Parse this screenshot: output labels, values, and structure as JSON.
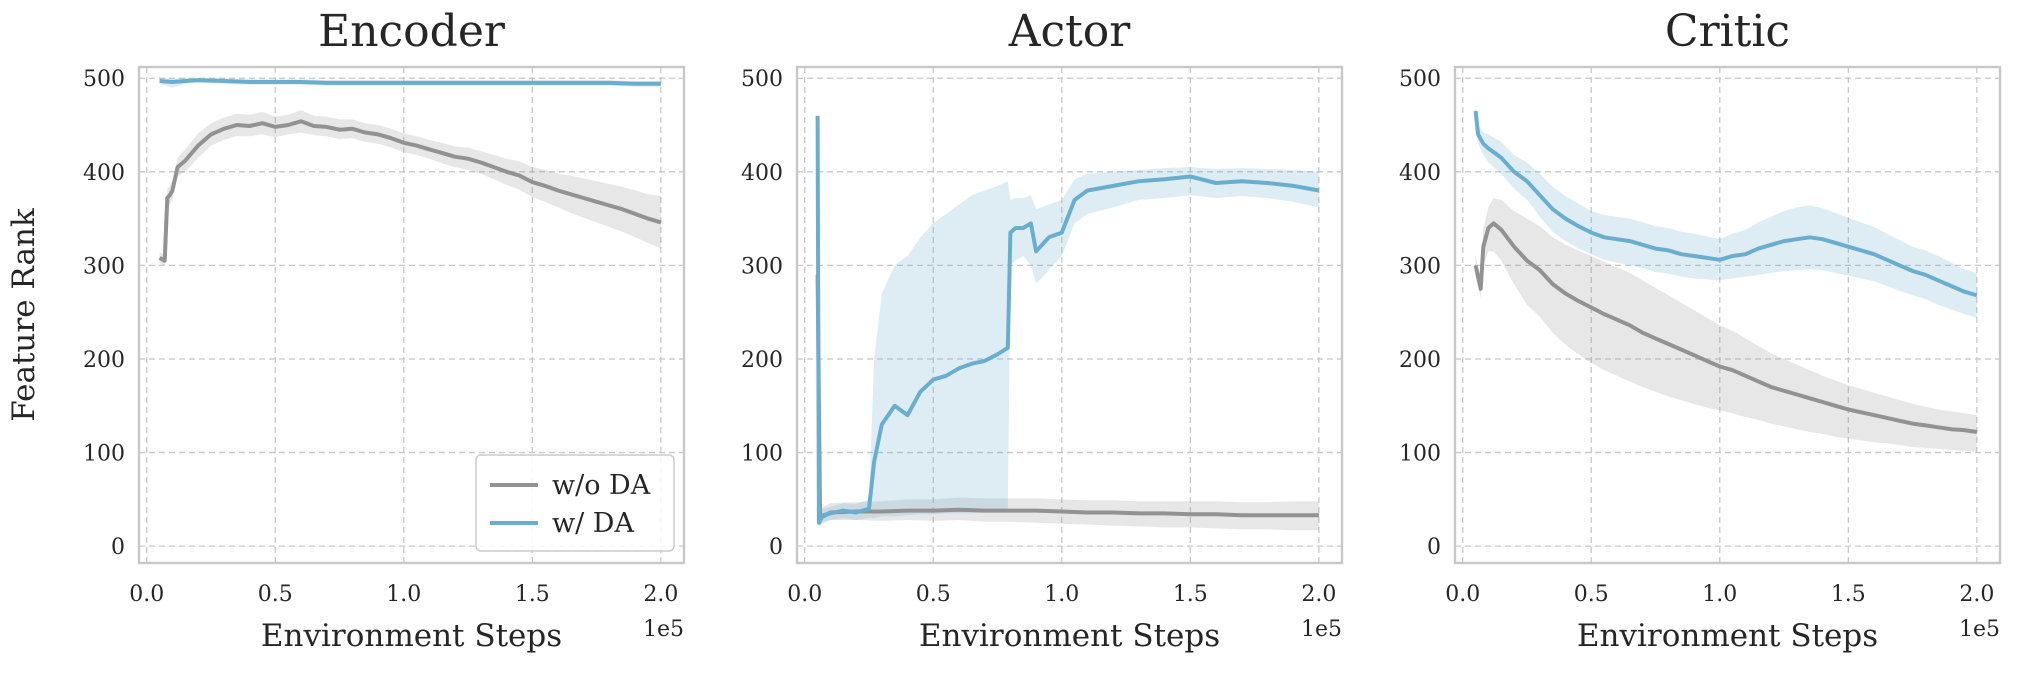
{
  "chart_data": [
    {
      "type": "line",
      "title": "Encoder",
      "xlabel": "Environment Steps",
      "ylabel": "Feature Rank",
      "x_offset_text": "1e5",
      "xlim": [
        -0.03,
        2.09
      ],
      "ylim": [
        -18,
        512
      ],
      "xticks": [
        0.0,
        0.5,
        1.0,
        1.5,
        2.0
      ],
      "xtick_labels": [
        "0.0",
        "0.5",
        "1.0",
        "1.5",
        "2.0"
      ],
      "yticks": [
        0,
        100,
        200,
        300,
        400,
        500
      ],
      "ytick_labels": [
        "0",
        "100",
        "200",
        "300",
        "400",
        "500"
      ],
      "grid": true,
      "legend": {
        "placement": "lower-right",
        "entries": [
          "w/o DA",
          "w/ DA"
        ]
      },
      "series": [
        {
          "name": "w/o DA",
          "color": "#929292",
          "x": [
            0.05,
            0.07,
            0.08,
            0.09,
            0.1,
            0.12,
            0.15,
            0.2,
            0.25,
            0.3,
            0.35,
            0.4,
            0.45,
            0.5,
            0.55,
            0.6,
            0.65,
            0.7,
            0.75,
            0.8,
            0.85,
            0.9,
            0.95,
            1.0,
            1.05,
            1.1,
            1.15,
            1.2,
            1.25,
            1.3,
            1.35,
            1.4,
            1.45,
            1.5,
            1.55,
            1.6,
            1.65,
            1.7,
            1.75,
            1.8,
            1.85,
            1.9,
            1.95,
            2.0
          ],
          "y": [
            308,
            305,
            372,
            375,
            380,
            405,
            412,
            428,
            440,
            446,
            450,
            449,
            452,
            448,
            450,
            454,
            449,
            448,
            445,
            446,
            442,
            440,
            436,
            431,
            428,
            424,
            420,
            416,
            414,
            410,
            405,
            400,
            396,
            389,
            385,
            380,
            376,
            372,
            368,
            364,
            360,
            355,
            350,
            346
          ],
          "band_low": [
            302,
            300,
            362,
            365,
            370,
            395,
            400,
            415,
            428,
            434,
            438,
            438,
            440,
            437,
            440,
            442,
            439,
            438,
            435,
            436,
            432,
            430,
            426,
            421,
            418,
            414,
            409,
            405,
            402,
            398,
            392,
            386,
            381,
            373,
            368,
            362,
            356,
            351,
            346,
            341,
            336,
            330,
            324,
            318
          ],
          "band_high": [
            314,
            311,
            382,
            385,
            390,
            415,
            424,
            441,
            452,
            458,
            462,
            461,
            464,
            459,
            461,
            466,
            460,
            459,
            456,
            456,
            452,
            450,
            446,
            441,
            438,
            434,
            431,
            427,
            426,
            422,
            418,
            414,
            411,
            405,
            402,
            398,
            396,
            393,
            390,
            387,
            384,
            380,
            376,
            374
          ]
        },
        {
          "name": "w/ DA",
          "color": "#6aaecf",
          "x": [
            0.05,
            0.1,
            0.15,
            0.2,
            0.3,
            0.4,
            0.5,
            0.6,
            0.7,
            0.8,
            0.9,
            1.0,
            1.1,
            1.2,
            1.3,
            1.4,
            1.5,
            1.6,
            1.7,
            1.8,
            1.9,
            2.0
          ],
          "y": [
            497,
            496,
            497,
            498,
            497,
            496,
            496,
            496,
            495,
            495,
            495,
            495,
            495,
            495,
            495,
            495,
            495,
            495,
            495,
            495,
            494,
            494
          ],
          "band_low": [
            494,
            490,
            494,
            495,
            494,
            493,
            493,
            493,
            492,
            492,
            492,
            492,
            492,
            492,
            492,
            492,
            492,
            492,
            492,
            492,
            491,
            491
          ],
          "band_high": [
            500,
            500,
            500,
            500,
            500,
            499,
            499,
            499,
            498,
            498,
            498,
            498,
            498,
            498,
            498,
            498,
            498,
            498,
            498,
            498,
            497,
            497
          ]
        }
      ]
    },
    {
      "type": "line",
      "title": "Actor",
      "xlabel": "Environment Steps",
      "ylabel": "",
      "x_offset_text": "1e5",
      "xlim": [
        -0.03,
        2.09
      ],
      "ylim": [
        -18,
        512
      ],
      "xticks": [
        0.0,
        0.5,
        1.0,
        1.5,
        2.0
      ],
      "xtick_labels": [
        "0.0",
        "0.5",
        "1.0",
        "1.5",
        "2.0"
      ],
      "yticks": [
        0,
        100,
        200,
        300,
        400,
        500
      ],
      "ytick_labels": [
        "0",
        "100",
        "200",
        "300",
        "400",
        "500"
      ],
      "grid": true,
      "series": [
        {
          "name": "w/o DA",
          "color": "#929292",
          "x": [
            0.05,
            0.06,
            0.1,
            0.2,
            0.3,
            0.4,
            0.5,
            0.6,
            0.7,
            0.8,
            0.9,
            1.0,
            1.1,
            1.2,
            1.3,
            1.4,
            1.5,
            1.6,
            1.7,
            1.8,
            1.9,
            2.0
          ],
          "y": [
            290,
            30,
            36,
            37,
            37,
            38,
            38,
            39,
            38,
            38,
            38,
            37,
            36,
            36,
            35,
            35,
            34,
            34,
            33,
            33,
            33,
            33
          ],
          "band_low": [
            280,
            22,
            28,
            28,
            27,
            28,
            27,
            28,
            26,
            26,
            25,
            24,
            23,
            22,
            21,
            20,
            20,
            19,
            18,
            18,
            17,
            17
          ],
          "band_high": [
            300,
            40,
            46,
            47,
            48,
            50,
            50,
            52,
            51,
            51,
            51,
            50,
            49,
            49,
            48,
            48,
            48,
            48,
            47,
            47,
            48,
            48
          ]
        },
        {
          "name": "w/ DA",
          "color": "#6aaecf",
          "x": [
            0.05,
            0.055,
            0.07,
            0.1,
            0.15,
            0.2,
            0.25,
            0.27,
            0.3,
            0.35,
            0.4,
            0.45,
            0.5,
            0.55,
            0.6,
            0.65,
            0.7,
            0.75,
            0.79,
            0.8,
            0.82,
            0.85,
            0.88,
            0.9,
            0.95,
            1.0,
            1.05,
            1.1,
            1.2,
            1.3,
            1.4,
            1.5,
            1.6,
            1.7,
            1.8,
            1.9,
            2.0
          ],
          "y": [
            460,
            25,
            33,
            35,
            38,
            36,
            40,
            90,
            130,
            150,
            140,
            165,
            178,
            182,
            190,
            195,
            198,
            205,
            212,
            335,
            340,
            340,
            345,
            315,
            330,
            335,
            370,
            380,
            385,
            390,
            392,
            395,
            388,
            390,
            388,
            385,
            380
          ],
          "band_low": [
            455,
            20,
            26,
            28,
            30,
            28,
            30,
            30,
            32,
            32,
            33,
            34,
            34,
            35,
            35,
            35,
            36,
            36,
            36,
            300,
            305,
            310,
            300,
            280,
            295,
            310,
            345,
            355,
            362,
            370,
            372,
            375,
            372,
            374,
            372,
            368,
            362
          ],
          "band_high": [
            466,
            32,
            40,
            42,
            46,
            45,
            50,
            200,
            270,
            300,
            310,
            330,
            345,
            355,
            365,
            375,
            380,
            385,
            390,
            370,
            372,
            372,
            375,
            360,
            365,
            370,
            392,
            398,
            400,
            402,
            404,
            405,
            403,
            404,
            403,
            402,
            400
          ]
        }
      ]
    },
    {
      "type": "line",
      "title": "Critic",
      "xlabel": "Environment Steps",
      "ylabel": "",
      "x_offset_text": "1e5",
      "xlim": [
        -0.03,
        2.09
      ],
      "ylim": [
        -18,
        512
      ],
      "xticks": [
        0.0,
        0.5,
        1.0,
        1.5,
        2.0
      ],
      "xtick_labels": [
        "0.0",
        "0.5",
        "1.0",
        "1.5",
        "2.0"
      ],
      "yticks": [
        0,
        100,
        200,
        300,
        400,
        500
      ],
      "ytick_labels": [
        "0",
        "100",
        "200",
        "300",
        "400",
        "500"
      ],
      "grid": true,
      "series": [
        {
          "name": "w/o DA",
          "color": "#929292",
          "x": [
            0.05,
            0.07,
            0.08,
            0.1,
            0.12,
            0.15,
            0.2,
            0.25,
            0.3,
            0.35,
            0.4,
            0.45,
            0.5,
            0.55,
            0.6,
            0.65,
            0.7,
            0.75,
            0.8,
            0.85,
            0.9,
            0.95,
            1.0,
            1.05,
            1.1,
            1.15,
            1.2,
            1.25,
            1.3,
            1.35,
            1.4,
            1.45,
            1.5,
            1.55,
            1.6,
            1.65,
            1.7,
            1.75,
            1.8,
            1.85,
            1.9,
            1.95,
            2.0
          ],
          "y": [
            300,
            275,
            320,
            340,
            345,
            338,
            320,
            305,
            295,
            280,
            270,
            262,
            255,
            248,
            242,
            236,
            228,
            222,
            216,
            210,
            204,
            198,
            192,
            188,
            182,
            176,
            170,
            166,
            162,
            158,
            154,
            150,
            146,
            143,
            140,
            137,
            134,
            131,
            129,
            127,
            125,
            124,
            122
          ],
          "band_low": [
            290,
            265,
            300,
            315,
            315,
            305,
            280,
            258,
            245,
            228,
            215,
            205,
            196,
            188,
            182,
            176,
            170,
            165,
            160,
            156,
            152,
            148,
            145,
            142,
            138,
            135,
            131,
            128,
            125,
            122,
            120,
            117,
            115,
            113,
            111,
            110,
            108,
            106,
            105,
            104,
            103,
            102,
            101
          ],
          "band_high": [
            310,
            285,
            340,
            362,
            372,
            370,
            358,
            350,
            342,
            330,
            322,
            316,
            310,
            304,
            298,
            292,
            284,
            276,
            268,
            260,
            252,
            244,
            236,
            230,
            222,
            214,
            206,
            200,
            194,
            188,
            182,
            177,
            172,
            168,
            164,
            160,
            156,
            152,
            149,
            146,
            144,
            142,
            140
          ]
        },
        {
          "name": "w/ DA",
          "color": "#6aaecf",
          "x": [
            0.05,
            0.06,
            0.08,
            0.1,
            0.15,
            0.2,
            0.25,
            0.3,
            0.35,
            0.4,
            0.45,
            0.5,
            0.55,
            0.6,
            0.65,
            0.7,
            0.75,
            0.8,
            0.85,
            0.9,
            0.95,
            1.0,
            1.05,
            1.1,
            1.15,
            1.2,
            1.25,
            1.3,
            1.35,
            1.4,
            1.45,
            1.5,
            1.55,
            1.6,
            1.65,
            1.7,
            1.75,
            1.8,
            1.85,
            1.9,
            1.95,
            2.0
          ],
          "y": [
            465,
            440,
            430,
            425,
            415,
            400,
            390,
            375,
            360,
            350,
            342,
            335,
            330,
            328,
            326,
            322,
            318,
            316,
            312,
            310,
            308,
            306,
            310,
            312,
            318,
            322,
            326,
            328,
            330,
            328,
            324,
            320,
            316,
            312,
            306,
            300,
            294,
            290,
            284,
            278,
            272,
            268
          ],
          "band_low": [
            460,
            430,
            418,
            410,
            398,
            382,
            370,
            352,
            336,
            326,
            318,
            312,
            306,
            303,
            300,
            297,
            293,
            291,
            288,
            286,
            285,
            284,
            286,
            288,
            290,
            292,
            294,
            295,
            296,
            295,
            292,
            289,
            286,
            283,
            278,
            273,
            268,
            264,
            258,
            253,
            248,
            244
          ],
          "band_high": [
            470,
            450,
            442,
            440,
            432,
            418,
            410,
            398,
            384,
            374,
            366,
            358,
            354,
            352,
            350,
            346,
            342,
            340,
            336,
            334,
            331,
            328,
            334,
            338,
            346,
            352,
            358,
            362,
            364,
            361,
            356,
            351,
            346,
            341,
            334,
            327,
            320,
            316,
            310,
            303,
            296,
            292
          ]
        }
      ]
    }
  ]
}
